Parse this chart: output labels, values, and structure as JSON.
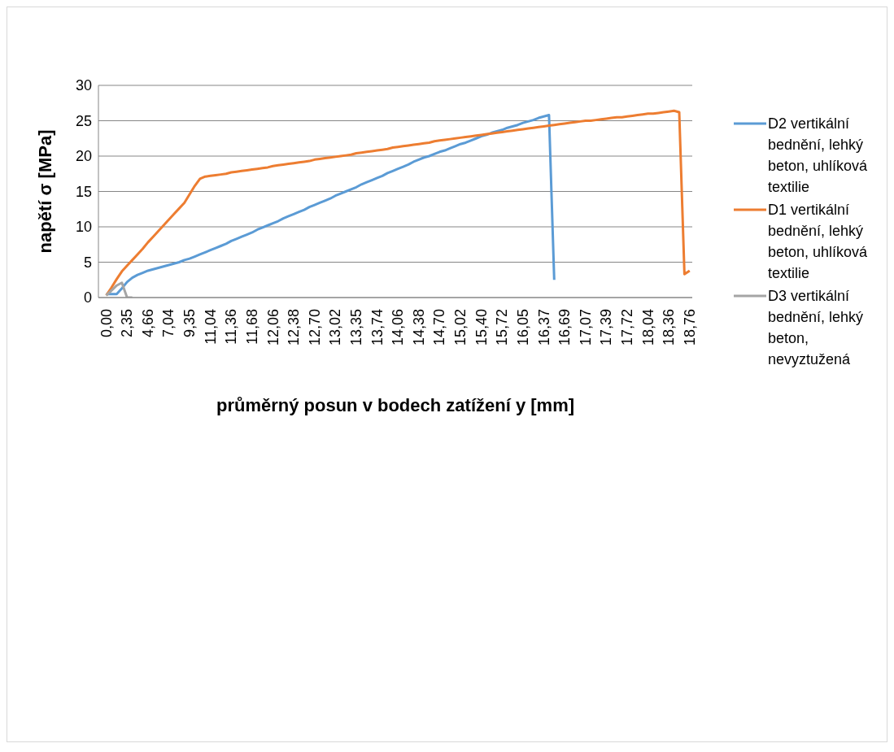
{
  "chart_data": {
    "type": "line",
    "xlabel": "průměrný posun v bodech zatížení y [mm]",
    "ylabel": "napětí σ [MPa]",
    "categories": [
      "0,00",
      null,
      null,
      null,
      "2,35",
      null,
      null,
      null,
      "4,66",
      null,
      null,
      null,
      "7,04",
      null,
      null,
      null,
      "9,35",
      null,
      null,
      null,
      "11,04",
      null,
      null,
      null,
      "11,36",
      null,
      null,
      null,
      "11,68",
      null,
      null,
      null,
      "12,06",
      null,
      null,
      null,
      "12,38",
      null,
      null,
      null,
      "12,70",
      null,
      null,
      null,
      "13,02",
      null,
      null,
      null,
      "13,35",
      null,
      null,
      null,
      "13,74",
      null,
      null,
      null,
      "14,06",
      null,
      null,
      null,
      "14,38",
      null,
      null,
      null,
      "14,70",
      null,
      null,
      null,
      "15,02",
      null,
      null,
      null,
      "15,40",
      null,
      null,
      null,
      "15,72",
      null,
      null,
      null,
      "16,05",
      null,
      null,
      null,
      "16,37",
      null,
      null,
      null,
      "16,69",
      null,
      null,
      null,
      "17,07",
      null,
      null,
      null,
      "17,39",
      null,
      null,
      null,
      "17,72",
      null,
      null,
      null,
      "18,04",
      null,
      null,
      null,
      "18,36",
      null,
      null,
      null,
      "18,76"
    ],
    "series": [
      {
        "name": "D2 vertikální bednění, lehký beton, uhlíková textilie",
        "color": "#5b9bd5",
        "values": [
          0.5,
          0.5,
          0.5,
          1.3,
          2.2,
          2.8,
          3.2,
          3.5,
          3.8,
          4.0,
          4.2,
          4.4,
          4.6,
          4.8,
          5.0,
          5.3,
          5.5,
          5.8,
          6.1,
          6.4,
          6.7,
          7.0,
          7.3,
          7.6,
          8.0,
          8.3,
          8.6,
          8.9,
          9.2,
          9.6,
          9.9,
          10.2,
          10.5,
          10.8,
          11.2,
          11.5,
          11.8,
          12.1,
          12.4,
          12.8,
          13.1,
          13.4,
          13.7,
          14.0,
          14.4,
          14.7,
          15.0,
          15.3,
          15.6,
          16.0,
          16.3,
          16.6,
          16.9,
          17.2,
          17.6,
          17.9,
          18.2,
          18.5,
          18.8,
          19.2,
          19.5,
          19.8,
          20.0,
          20.3,
          20.6,
          20.8,
          21.1,
          21.4,
          21.7,
          21.9,
          22.2,
          22.5,
          22.8,
          23.0,
          23.3,
          23.5,
          23.7,
          24.0,
          24.2,
          24.4,
          24.7,
          24.9,
          25.1,
          25.4,
          25.6,
          25.8,
          2.5,
          null,
          null,
          null,
          null,
          null,
          null,
          null,
          null,
          null,
          null,
          null,
          null,
          null,
          null,
          null,
          null,
          null,
          null,
          null,
          null,
          null,
          null,
          null,
          null,
          null,
          null
        ]
      },
      {
        "name": "D1 vertikální bednění, lehký beton, uhlíková textilie",
        "color": "#ed7d31",
        "values": [
          0.3,
          1.4,
          2.6,
          3.7,
          4.5,
          5.3,
          6.1,
          6.9,
          7.8,
          8.6,
          9.4,
          10.2,
          11.0,
          11.8,
          12.6,
          13.4,
          14.6,
          15.8,
          16.8,
          17.1,
          17.2,
          17.3,
          17.4,
          17.5,
          17.7,
          17.8,
          17.9,
          18.0,
          18.1,
          18.2,
          18.3,
          18.4,
          18.6,
          18.7,
          18.8,
          18.9,
          19.0,
          19.1,
          19.2,
          19.3,
          19.5,
          19.6,
          19.7,
          19.8,
          19.9,
          20.0,
          20.1,
          20.2,
          20.4,
          20.5,
          20.6,
          20.7,
          20.8,
          20.9,
          21.0,
          21.2,
          21.3,
          21.4,
          21.5,
          21.6,
          21.7,
          21.8,
          21.9,
          22.1,
          22.2,
          22.3,
          22.4,
          22.5,
          22.6,
          22.7,
          22.8,
          22.9,
          23.0,
          23.1,
          23.2,
          23.3,
          23.4,
          23.5,
          23.6,
          23.7,
          23.8,
          23.9,
          24.0,
          24.1,
          24.2,
          24.3,
          24.4,
          24.5,
          24.6,
          24.7,
          24.8,
          24.9,
          25.0,
          25.0,
          25.1,
          25.2,
          25.3,
          25.4,
          25.5,
          25.5,
          25.6,
          25.7,
          25.8,
          25.9,
          26.0,
          26.0,
          26.1,
          26.2,
          26.3,
          26.4,
          26.2,
          3.3,
          3.8
        ]
      },
      {
        "name": "D3 vertikální bednění, lehký beton, nevyztužená",
        "color": "#a5a5a5",
        "values": [
          0.3,
          1.0,
          1.7,
          2.1,
          0.0,
          0.0,
          null,
          null,
          null,
          null,
          null,
          null,
          null,
          null,
          null,
          null,
          null,
          null,
          null,
          null,
          null,
          null,
          null,
          null,
          null,
          null,
          null,
          null,
          null,
          null,
          null,
          null,
          null,
          null,
          null,
          null,
          null,
          null,
          null,
          null,
          null,
          null,
          null,
          null,
          null,
          null,
          null,
          null,
          null,
          null,
          null,
          null,
          null,
          null,
          null,
          null,
          null,
          null,
          null,
          null,
          null,
          null,
          null,
          null,
          null,
          null,
          null,
          null,
          null,
          null,
          null,
          null,
          null,
          null,
          null,
          null,
          null,
          null,
          null,
          null,
          null,
          null,
          null,
          null,
          null,
          null,
          null,
          null,
          null,
          null,
          null,
          null,
          null,
          null,
          null,
          null,
          null,
          null,
          null,
          null,
          null,
          null,
          null,
          null,
          null,
          null,
          null,
          null,
          null,
          null,
          null,
          null,
          null
        ]
      }
    ],
    "ylim": [
      0,
      30
    ],
    "yticks": [
      0,
      5,
      10,
      15,
      20,
      25,
      30
    ],
    "grid": "y",
    "legend": "right",
    "marker": "none",
    "line_style": "solid"
  }
}
